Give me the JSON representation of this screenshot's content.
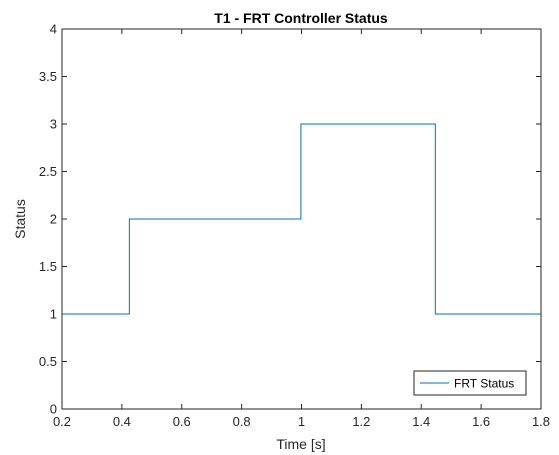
{
  "chart_data": {
    "type": "line",
    "title": "T1 - FRT Controller Status",
    "xlabel": "Time [s]",
    "ylabel": "Status",
    "xlim": [
      0.2,
      1.8
    ],
    "ylim": [
      0,
      4
    ],
    "xticks": [
      0.2,
      0.4,
      0.6,
      0.8,
      1,
      1.2,
      1.4,
      1.6,
      1.8
    ],
    "xtick_labels": [
      "0.2",
      "0.4",
      "0.6",
      "0.8",
      "1",
      "1.2",
      "1.4",
      "1.6",
      "1.8"
    ],
    "yticks": [
      0,
      0.5,
      1,
      1.5,
      2,
      2.5,
      3,
      3.5,
      4
    ],
    "ytick_labels": [
      "0",
      "0.5",
      "1",
      "1.5",
      "2",
      "2.5",
      "3",
      "3.5",
      "4"
    ],
    "grid": false,
    "legend": {
      "location": "bottom-right"
    },
    "series": [
      {
        "name": "FRT Status",
        "color": "#0072BD",
        "step": true,
        "x": [
          0.2,
          0.425,
          0.425,
          0.998,
          0.998,
          1.447,
          1.447,
          1.8
        ],
        "y": [
          1,
          1,
          2,
          2,
          3,
          3,
          1,
          1
        ]
      }
    ]
  }
}
